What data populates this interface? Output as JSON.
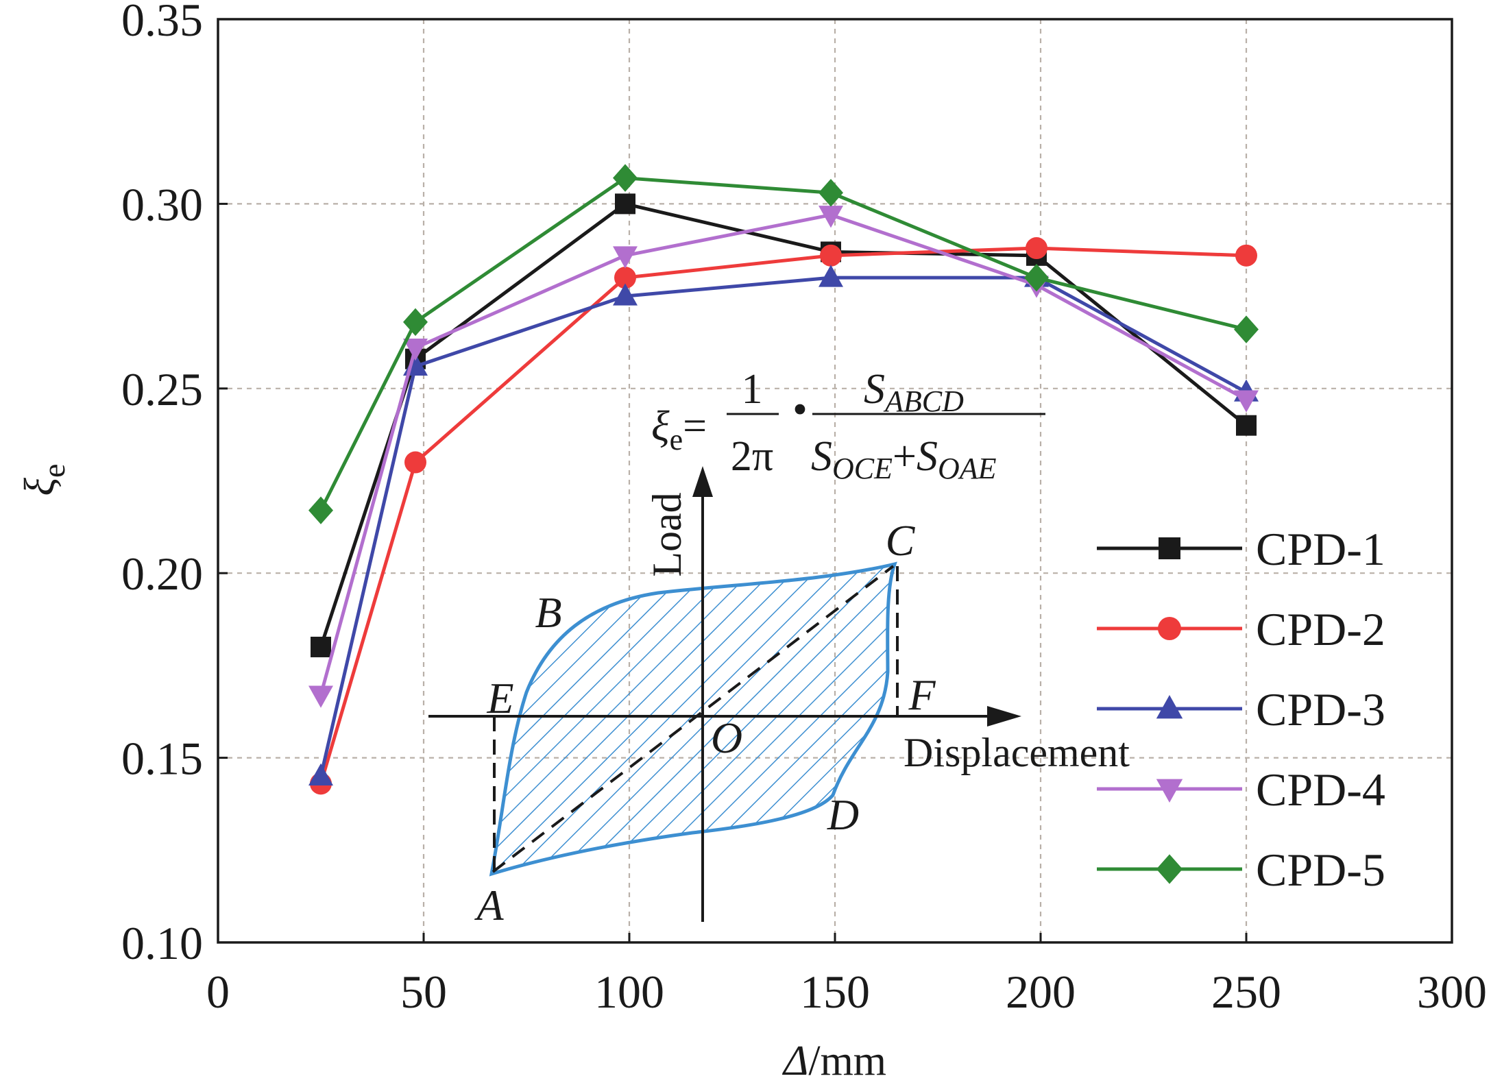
{
  "chart_data": {
    "type": "line",
    "title": "",
    "xlabel_italic": "Δ",
    "xlabel_unit": "/mm",
    "ylabel_symbol": "ξ",
    "ylabel_subscript": "e",
    "xlim": [
      0,
      300
    ],
    "ylim": [
      0.1,
      0.35
    ],
    "xticks": [
      0,
      50,
      100,
      150,
      200,
      250,
      300
    ],
    "xtick_labels": [
      "0",
      "50",
      "100",
      "150",
      "200",
      "250",
      "300"
    ],
    "yticks": [
      0.1,
      0.15,
      0.2,
      0.25,
      0.3,
      0.35
    ],
    "ytick_labels": [
      "0.10",
      "0.15",
      "0.20",
      "0.25",
      "0.30",
      "0.35"
    ],
    "grid": true,
    "legend_position": "right-center",
    "series": [
      {
        "name": "CPD-1",
        "color": "#1a1a1a",
        "marker": "square",
        "x": [
          25,
          48,
          99,
          149,
          199,
          250
        ],
        "y": [
          0.18,
          0.258,
          0.3,
          0.287,
          0.286,
          0.24
        ]
      },
      {
        "name": "CPD-2",
        "color": "#ee3b3b",
        "marker": "circle",
        "x": [
          25,
          48,
          99,
          149,
          199,
          250
        ],
        "y": [
          0.143,
          0.23,
          0.28,
          0.286,
          0.288,
          0.286
        ]
      },
      {
        "name": "CPD-3",
        "color": "#3f48a8",
        "marker": "triangle-up",
        "x": [
          25,
          48,
          99,
          149,
          199,
          250
        ],
        "y": [
          0.145,
          0.256,
          0.275,
          0.28,
          0.28,
          0.249
        ]
      },
      {
        "name": "CPD-4",
        "color": "#b26fce",
        "marker": "triangle-down",
        "x": [
          25,
          48,
          99,
          149,
          199,
          250
        ],
        "y": [
          0.167,
          0.261,
          0.286,
          0.297,
          0.278,
          0.247
        ]
      },
      {
        "name": "CPD-5",
        "color": "#2f8b35",
        "marker": "diamond",
        "x": [
          25,
          48,
          99,
          149,
          199,
          250
        ],
        "y": [
          0.217,
          0.268,
          0.307,
          0.303,
          0.28,
          0.266
        ]
      }
    ],
    "inset": {
      "formula_lhs": "ξ",
      "formula_lhs_sub": "e",
      "formula_eq": "=",
      "formula_num1": "1",
      "formula_den1": "2π",
      "formula_dot": "•",
      "formula_num2_S": "S",
      "formula_num2_sub": "ABCD",
      "formula_den2_S1": "S",
      "formula_den2_sub1": "OCE",
      "formula_plus": "+",
      "formula_den2_S2": "S",
      "formula_den2_sub2": "OAE",
      "load_axis_label": "Load",
      "displacement_axis_label": "Displacement",
      "points": [
        "A",
        "B",
        "C",
        "D",
        "E",
        "F",
        "O"
      ],
      "loop_color": "#3d8fd1"
    }
  }
}
